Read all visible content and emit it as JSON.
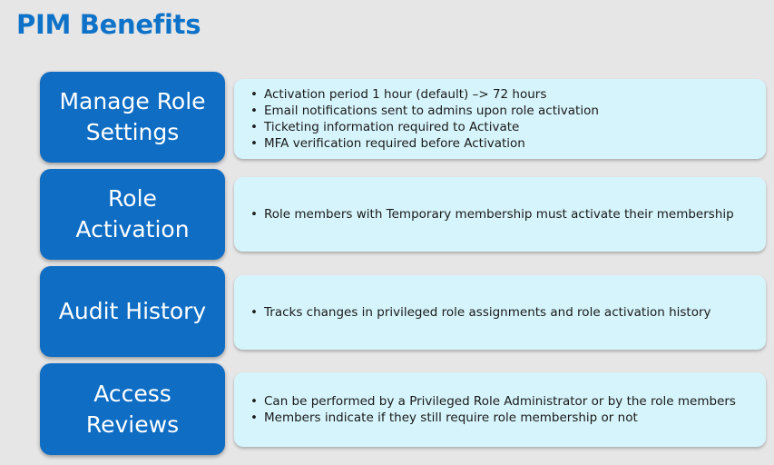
{
  "title": "PIM Benefits",
  "colors": {
    "background": "#e6e6e6",
    "title": "#0e72c8",
    "label_box": "#0f6dc4",
    "panel": "#d6f4fb"
  },
  "rows": [
    {
      "label_lines": [
        "Manage Role",
        "Settings"
      ],
      "bullets": [
        "Activation period 1 hour (default) –> 72 hours",
        "Email notifications sent to admins upon role activation",
        "Ticketing information required to Activate",
        "MFA verification required before Activation"
      ]
    },
    {
      "label_lines": [
        "Role",
        "Activation"
      ],
      "bullets": [
        "Role members with Temporary membership must activate their membership"
      ]
    },
    {
      "label_lines": [
        "Audit History"
      ],
      "bullets": [
        "Tracks changes in privileged role assignments and role activation history"
      ]
    },
    {
      "label_lines": [
        "Access",
        "Reviews"
      ],
      "bullets": [
        "Can be performed by a Privileged Role Administrator or by the role members",
        "Members indicate if they still require role membership or not"
      ]
    }
  ]
}
